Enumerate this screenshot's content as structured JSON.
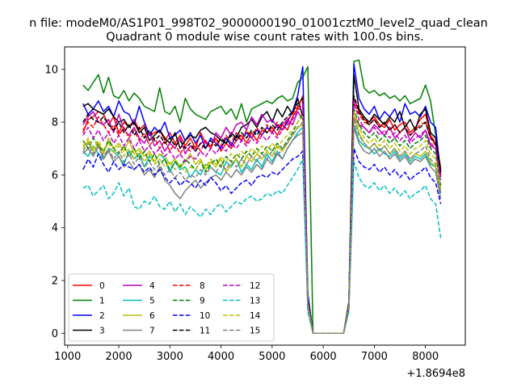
{
  "chart_data": {
    "type": "line",
    "suptitle": "n file: modeM0/AS1P01_998T02_9000000190_01001cztM0_level2_quad_clean",
    "title": "Quadrant 0 module wise count rates with 100.0s bins.",
    "xlabel": "",
    "ylabel": "",
    "x_offset_text": "+1.8694e8",
    "xlim": [
      940,
      8780
    ],
    "ylim": [
      -0.45,
      10.85
    ],
    "xticks": [
      1000,
      2000,
      3000,
      4000,
      5000,
      6000,
      7000,
      8000
    ],
    "yticks": [
      0,
      2,
      4,
      6,
      8,
      10
    ],
    "x_start": 1300,
    "x_step": 100,
    "gap": [
      6300,
      6900
    ],
    "legend_position": "lower-left",
    "series": [
      {
        "name": "0",
        "color": "#ff0000",
        "dash": "solid",
        "values": [
          7.6,
          8.1,
          8.2,
          8.4,
          8.3,
          7.9,
          8.2,
          7.6,
          8.0,
          7.8,
          8.1,
          7.7,
          7.9,
          7.5,
          7.6,
          7.7,
          7.3,
          7.6,
          7.2,
          7.5,
          7.1,
          7.4,
          7.0,
          7.6,
          7.2,
          7.1,
          7.4,
          6.9,
          7.2,
          7.0,
          7.3,
          7.5,
          7.2,
          7.6,
          7.3,
          7.7,
          7.6,
          7.8,
          7.5,
          7.9,
          7.7,
          8.2,
          8.5,
          9.0,
          1.2,
          0,
          0,
          0,
          0,
          0,
          0,
          0,
          1.0,
          8.9,
          8.4,
          8.1,
          8.0,
          8.2,
          7.9,
          7.8,
          8.1,
          7.7,
          7.9,
          8.0,
          7.6,
          7.8,
          8.1,
          8.3,
          7.5,
          7.2,
          6.3
        ]
      },
      {
        "name": "1",
        "color": "#008000",
        "dash": "solid",
        "values": [
          9.4,
          9.2,
          9.5,
          9.8,
          9.1,
          9.7,
          9.0,
          8.9,
          9.2,
          8.8,
          9.1,
          8.9,
          8.6,
          8.5,
          8.4,
          9.3,
          8.4,
          8.3,
          8.6,
          8.0,
          8.9,
          8.5,
          8.3,
          8.2,
          8.1,
          8.4,
          8.5,
          8.6,
          8.3,
          8.5,
          8.1,
          8.7,
          8.0,
          8.5,
          8.6,
          8.7,
          8.8,
          8.7,
          8.9,
          9.0,
          8.8,
          8.9,
          9.5,
          9.7,
          10.1,
          0,
          0,
          0,
          0,
          0,
          0,
          0,
          1.2,
          10.3,
          10.35,
          9.3,
          9.1,
          9.2,
          9.0,
          9.1,
          8.9,
          9.0,
          8.8,
          9.0,
          8.7,
          8.8,
          8.9,
          9.4,
          8.8,
          7.5,
          6.2
        ]
      },
      {
        "name": "2",
        "color": "#0000ff",
        "dash": "solid",
        "values": [
          8.7,
          8.3,
          8.5,
          8.8,
          8.4,
          8.6,
          8.2,
          8.8,
          8.4,
          8.3,
          7.9,
          8.6,
          8.0,
          7.5,
          7.8,
          7.6,
          8.0,
          7.4,
          7.5,
          7.7,
          7.3,
          7.6,
          7.2,
          7.5,
          7.0,
          7.4,
          7.2,
          7.0,
          7.4,
          7.1,
          7.5,
          7.3,
          7.6,
          7.4,
          7.7,
          7.5,
          7.8,
          7.6,
          7.9,
          7.7,
          8.0,
          8.4,
          9.0,
          10.1,
          1.5,
          0,
          0,
          0,
          0,
          0,
          0,
          0,
          1.0,
          10.2,
          8.9,
          8.5,
          8.3,
          8.6,
          8.1,
          8.4,
          8.2,
          8.5,
          8.0,
          8.7,
          8.3,
          8.4,
          8.2,
          8.6,
          8.0,
          7.8,
          6.0
        ]
      },
      {
        "name": "3",
        "color": "#000000",
        "dash": "solid",
        "values": [
          8.6,
          8.7,
          8.5,
          8.4,
          8.3,
          8.5,
          8.2,
          8.0,
          8.1,
          7.8,
          8.0,
          7.6,
          7.8,
          7.3,
          7.5,
          7.7,
          7.4,
          7.2,
          7.6,
          7.0,
          7.3,
          7.5,
          7.4,
          7.7,
          7.8,
          7.6,
          7.5,
          7.3,
          7.2,
          7.6,
          7.4,
          7.8,
          7.9,
          8.1,
          7.8,
          8.2,
          8.4,
          8.0,
          8.5,
          8.2,
          8.6,
          8.3,
          8.9,
          8.2,
          1.3,
          0,
          0,
          0,
          0,
          0,
          0,
          0,
          1.1,
          9.8,
          8.5,
          8.2,
          8.0,
          8.3,
          8.1,
          7.9,
          8.2,
          8.0,
          8.4,
          7.8,
          8.1,
          7.7,
          8.3,
          8.5,
          7.6,
          7.4,
          6.1
        ]
      },
      {
        "name": "4",
        "color": "#bf00bf",
        "dash": "solid",
        "values": [
          7.9,
          8.2,
          8.4,
          8.0,
          7.9,
          8.1,
          7.6,
          8.3,
          7.7,
          7.5,
          7.8,
          7.4,
          7.2,
          7.6,
          7.1,
          7.3,
          6.9,
          7.2,
          7.0,
          7.4,
          6.8,
          7.1,
          6.9,
          7.2,
          7.3,
          7.0,
          7.6,
          7.4,
          7.8,
          7.5,
          7.9,
          8.0,
          7.7,
          8.2,
          7.9,
          8.3,
          8.0,
          8.1,
          7.8,
          7.9,
          8.1,
          7.9,
          8.4,
          8.1,
          1.2,
          0,
          0,
          0,
          0,
          0,
          0,
          0,
          1.1,
          8.2,
          7.9,
          7.8,
          7.6,
          7.9,
          7.7,
          7.5,
          7.8,
          7.4,
          7.6,
          7.8,
          7.3,
          7.6,
          7.4,
          7.7,
          7.1,
          7.0,
          5.9
        ]
      },
      {
        "name": "5",
        "color": "#00bfbf",
        "dash": "solid",
        "values": [
          6.9,
          6.7,
          7.1,
          6.8,
          6.6,
          7.0,
          6.9,
          6.7,
          6.4,
          6.9,
          6.6,
          6.8,
          6.3,
          6.7,
          6.5,
          6.8,
          6.6,
          6.1,
          6.5,
          6.2,
          6.3,
          5.9,
          6.2,
          6.0,
          6.4,
          6.3,
          6.1,
          6.0,
          6.5,
          6.3,
          6.6,
          6.1,
          6.4,
          6.2,
          6.6,
          6.3,
          6.8,
          6.5,
          6.9,
          6.6,
          7.0,
          7.3,
          7.6,
          7.8,
          1.1,
          0,
          0,
          0,
          0,
          0,
          0,
          0,
          1.0,
          7.9,
          7.3,
          7.1,
          7.0,
          6.8,
          7.0,
          6.8,
          6.7,
          6.9,
          6.6,
          6.8,
          6.5,
          6.7,
          6.6,
          6.8,
          6.4,
          6.3,
          5.3
        ]
      },
      {
        "name": "6",
        "color": "#bfbf00",
        "dash": "solid",
        "values": [
          7.0,
          7.3,
          6.9,
          7.2,
          6.8,
          7.4,
          7.0,
          7.2,
          6.9,
          7.3,
          6.8,
          7.0,
          6.7,
          6.9,
          6.5,
          6.8,
          6.7,
          6.4,
          6.6,
          6.3,
          6.5,
          6.8,
          6.4,
          6.6,
          6.2,
          6.5,
          6.3,
          6.6,
          6.1,
          6.4,
          6.6,
          6.3,
          6.7,
          6.5,
          6.8,
          6.6,
          6.9,
          6.7,
          7.1,
          6.9,
          7.2,
          7.5,
          7.8,
          7.9,
          1.2,
          0,
          0,
          0,
          0,
          0,
          0,
          0,
          1.0,
          8.2,
          7.6,
          7.2,
          7.0,
          7.2,
          6.9,
          7.1,
          6.8,
          7.0,
          6.7,
          6.9,
          6.6,
          6.8,
          6.7,
          6.9,
          6.5,
          6.3,
          5.4
        ]
      },
      {
        "name": "7",
        "color": "#808080",
        "dash": "solid",
        "values": [
          6.8,
          7.0,
          6.7,
          7.1,
          6.6,
          6.9,
          6.5,
          6.7,
          6.3,
          6.5,
          6.2,
          6.4,
          6.0,
          6.2,
          5.9,
          6.3,
          5.8,
          5.6,
          5.3,
          5.1,
          5.4,
          5.6,
          5.8,
          5.5,
          5.7,
          5.9,
          6.0,
          5.8,
          6.1,
          5.9,
          6.2,
          6.0,
          6.3,
          6.1,
          6.4,
          6.2,
          6.6,
          6.4,
          6.8,
          6.6,
          7.0,
          7.3,
          7.5,
          7.6,
          1.0,
          0,
          0,
          0,
          0,
          0,
          0,
          0,
          1.0,
          7.8,
          7.2,
          6.9,
          6.8,
          7.0,
          6.7,
          6.9,
          6.6,
          6.8,
          6.5,
          6.7,
          6.4,
          6.6,
          6.5,
          6.7,
          6.3,
          6.1,
          5.1
        ]
      },
      {
        "name": "8",
        "color": "#ff0000",
        "dash": "dashed",
        "values": [
          7.7,
          8.0,
          7.8,
          8.2,
          7.9,
          7.6,
          7.9,
          7.5,
          7.8,
          7.4,
          7.7,
          7.3,
          7.6,
          7.1,
          7.4,
          7.0,
          7.3,
          6.9,
          7.2,
          6.8,
          7.1,
          6.9,
          7.2,
          6.9,
          7.3,
          7.0,
          7.4,
          7.1,
          7.5,
          7.2,
          7.6,
          7.3,
          7.7,
          7.4,
          7.8,
          7.5,
          7.9,
          7.6,
          8.0,
          7.7,
          8.1,
          8.3,
          8.6,
          8.9,
          1.2,
          0,
          0,
          0,
          0,
          0,
          0,
          0,
          1.1,
          8.7,
          8.3,
          8.0,
          7.9,
          8.1,
          7.8,
          8.0,
          7.7,
          7.9,
          7.6,
          7.8,
          7.5,
          7.7,
          7.9,
          8.0,
          7.4,
          7.1,
          6.0
        ]
      },
      {
        "name": "9",
        "color": "#008000",
        "dash": "dashed",
        "values": [
          7.3,
          7.0,
          7.4,
          7.1,
          6.9,
          7.3,
          7.0,
          6.8,
          7.1,
          6.7,
          7.0,
          6.6,
          6.9,
          6.5,
          6.8,
          6.4,
          6.6,
          6.2,
          6.5,
          6.3,
          6.6,
          6.4,
          6.2,
          6.5,
          6.1,
          6.4,
          6.6,
          6.3,
          6.7,
          6.5,
          6.8,
          6.6,
          6.9,
          6.7,
          7.0,
          6.8,
          7.1,
          6.9,
          7.2,
          7.0,
          7.3,
          7.6,
          8.0,
          8.3,
          1.1,
          0,
          0,
          0,
          0,
          0,
          0,
          0,
          1.0,
          8.5,
          7.9,
          7.6,
          7.4,
          7.6,
          7.3,
          7.5,
          7.2,
          7.4,
          7.1,
          7.3,
          7.0,
          7.2,
          7.3,
          7.5,
          7.0,
          6.8,
          5.6
        ]
      },
      {
        "name": "10",
        "color": "#0000ff",
        "dash": "dashed",
        "values": [
          6.2,
          6.6,
          6.3,
          6.8,
          6.4,
          6.1,
          6.5,
          6.2,
          6.4,
          6.3,
          6.2,
          6.4,
          6.1,
          6.3,
          6.0,
          6.2,
          5.9,
          5.7,
          5.9,
          5.6,
          5.8,
          5.7,
          5.5,
          5.8,
          5.6,
          5.9,
          5.7,
          5.4,
          5.6,
          5.3,
          5.5,
          5.7,
          5.8,
          5.6,
          5.9,
          6.0,
          5.9,
          6.1,
          6.0,
          6.2,
          6.4,
          6.6,
          6.7,
          6.9,
          1.0,
          0,
          0,
          0,
          0,
          0,
          0,
          0,
          0.9,
          7.0,
          6.5,
          6.3,
          6.2,
          6.4,
          6.1,
          6.3,
          6.0,
          6.2,
          5.9,
          6.1,
          5.8,
          6.0,
          6.1,
          6.3,
          5.9,
          5.7,
          4.9
        ]
      },
      {
        "name": "11",
        "color": "#000000",
        "dash": "dashed",
        "values": [
          8.0,
          8.3,
          8.1,
          8.0,
          8.2,
          7.9,
          7.7,
          8.0,
          7.6,
          7.9,
          7.5,
          7.8,
          7.4,
          7.7,
          7.3,
          7.5,
          7.2,
          7.4,
          7.1,
          7.3,
          7.0,
          7.2,
          6.9,
          7.2,
          7.0,
          7.3,
          7.1,
          7.4,
          7.2,
          7.5,
          7.3,
          7.6,
          7.4,
          7.7,
          7.5,
          7.8,
          7.6,
          7.9,
          7.7,
          8.0,
          8.2,
          8.4,
          8.7,
          8.9,
          1.2,
          0,
          0,
          0,
          0,
          0,
          0,
          0,
          1.1,
          9.0,
          8.4,
          8.1,
          7.9,
          8.1,
          7.8,
          8.0,
          7.7,
          7.9,
          7.6,
          7.8,
          7.5,
          7.7,
          7.8,
          8.0,
          7.4,
          7.2,
          6.1
        ]
      },
      {
        "name": "12",
        "color": "#bf00bf",
        "dash": "dashed",
        "values": [
          7.5,
          7.8,
          7.4,
          7.7,
          7.3,
          7.6,
          7.2,
          7.5,
          7.1,
          7.4,
          7.0,
          7.3,
          6.9,
          7.1,
          6.8,
          7.0,
          6.7,
          6.9,
          6.6,
          6.8,
          6.5,
          6.7,
          6.6,
          6.9,
          6.7,
          7.0,
          6.8,
          7.1,
          6.9,
          7.2,
          7.0,
          7.3,
          7.1,
          7.4,
          7.2,
          7.5,
          7.3,
          7.6,
          7.4,
          7.7,
          7.9,
          8.1,
          8.4,
          8.7,
          1.1,
          0,
          0,
          0,
          0,
          0,
          0,
          0,
          1.0,
          8.8,
          8.1,
          7.8,
          7.6,
          7.8,
          7.5,
          7.7,
          7.4,
          7.6,
          7.3,
          7.5,
          7.2,
          7.4,
          7.5,
          7.7,
          7.2,
          7.0,
          5.8
        ]
      },
      {
        "name": "13",
        "color": "#00bfbf",
        "dash": "dashed",
        "values": [
          5.5,
          5.6,
          5.2,
          5.4,
          5.6,
          5.1,
          5.3,
          5.7,
          5.2,
          5.5,
          4.8,
          4.7,
          5.0,
          4.9,
          5.2,
          4.8,
          4.7,
          5.0,
          4.6,
          4.9,
          4.5,
          4.8,
          4.6,
          4.4,
          4.7,
          4.5,
          4.8,
          4.9,
          4.6,
          4.8,
          5.0,
          4.9,
          5.1,
          5.2,
          5.0,
          5.1,
          5.3,
          5.2,
          5.4,
          5.3,
          5.6,
          5.9,
          6.2,
          6.6,
          0.8,
          0,
          0,
          0,
          0,
          0,
          0,
          0,
          0.8,
          6.5,
          5.9,
          5.6,
          5.5,
          5.7,
          5.4,
          5.6,
          5.3,
          5.5,
          5.2,
          5.4,
          5.1,
          5.3,
          5.4,
          5.6,
          5.1,
          4.9,
          3.6
        ]
      },
      {
        "name": "14",
        "color": "#bfbf00",
        "dash": "dashed",
        "values": [
          7.1,
          7.4,
          7.0,
          7.3,
          6.9,
          7.2,
          6.8,
          7.1,
          6.7,
          7.0,
          6.6,
          6.9,
          6.5,
          6.8,
          6.4,
          6.6,
          6.3,
          6.5,
          6.2,
          6.4,
          6.1,
          6.3,
          6.2,
          6.5,
          6.3,
          6.6,
          6.4,
          6.7,
          6.5,
          6.8,
          6.6,
          6.9,
          6.7,
          7.0,
          6.8,
          7.1,
          6.9,
          7.2,
          7.0,
          7.3,
          7.5,
          7.7,
          8.0,
          8.2,
          1.1,
          0,
          0,
          0,
          0,
          0,
          0,
          0,
          1.0,
          8.4,
          7.8,
          7.4,
          7.2,
          7.4,
          7.1,
          7.3,
          7.0,
          7.2,
          6.9,
          7.1,
          6.8,
          7.0,
          7.1,
          7.3,
          6.8,
          6.6,
          5.5
        ]
      },
      {
        "name": "15",
        "color": "#808080",
        "dash": "dashed",
        "values": [
          6.9,
          7.2,
          6.8,
          7.1,
          6.7,
          7.0,
          6.6,
          6.9,
          6.5,
          6.8,
          6.4,
          6.7,
          6.3,
          6.5,
          6.2,
          6.4,
          6.0,
          6.2,
          5.9,
          6.1,
          5.8,
          6.0,
          5.9,
          6.2,
          6.0,
          6.3,
          6.1,
          6.4,
          6.2,
          6.5,
          6.3,
          6.6,
          6.4,
          6.7,
          6.5,
          6.8,
          6.6,
          6.9,
          6.7,
          7.0,
          7.2,
          7.5,
          7.8,
          8.0,
          1.0,
          0,
          0,
          0,
          0,
          0,
          0,
          0,
          1.0,
          8.1,
          7.5,
          7.2,
          7.0,
          7.2,
          6.9,
          7.1,
          6.8,
          7.0,
          6.7,
          6.9,
          6.6,
          6.8,
          6.9,
          7.1,
          6.6,
          6.4,
          5.3
        ]
      }
    ]
  }
}
